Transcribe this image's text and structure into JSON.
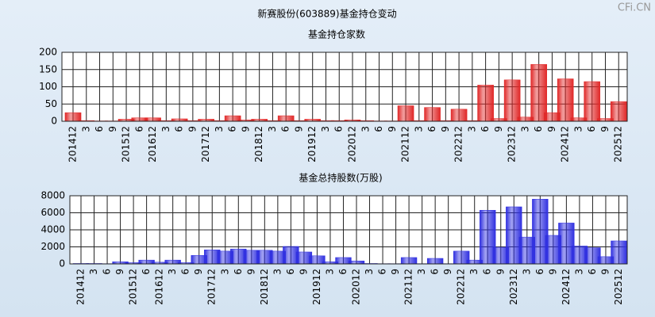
{
  "title": "新赛股份(603889)基金持仓变动",
  "watermark": "CFi.CN",
  "chart_data": [
    {
      "type": "bar",
      "title": "基金持仓家数",
      "categories": [
        "201412",
        "3",
        "6",
        "9",
        "201512",
        "6",
        "201612",
        "3",
        "6",
        "9",
        "201712",
        "3",
        "6",
        "9",
        "201812",
        "3",
        "6",
        "9",
        "201912",
        "3",
        "6",
        "202012",
        "3",
        "6",
        "9",
        "202112",
        "3",
        "6",
        "9",
        "202212",
        "3",
        "6",
        "9",
        "202312",
        "3",
        "6",
        "9",
        "202412",
        "3",
        "6",
        "9",
        "202512"
      ],
      "values": [
        25,
        2,
        1,
        1,
        6,
        10,
        10,
        2,
        7,
        2,
        6,
        2,
        16,
        4,
        6,
        2,
        16,
        2,
        6,
        2,
        2,
        4,
        2,
        1,
        1,
        45,
        2,
        40,
        2,
        35,
        2,
        105,
        8,
        120,
        12,
        165,
        25,
        123,
        10,
        115,
        8,
        57
      ],
      "color": "#e02828",
      "ylim": [
        0,
        200
      ],
      "yticks": [
        0,
        50,
        100,
        150,
        200
      ],
      "grid": true
    },
    {
      "type": "bar",
      "title": "基金总持股数(万股)",
      "categories": [
        "201412",
        "3",
        "6",
        "9",
        "201512",
        "6",
        "201612",
        "3",
        "6",
        "9",
        "201712",
        "3",
        "6",
        "9",
        "201812",
        "3",
        "6",
        "9",
        "201912",
        "3",
        "6",
        "202012",
        "3",
        "6",
        "9",
        "202112",
        "3",
        "6",
        "9",
        "202212",
        "3",
        "6",
        "9",
        "202312",
        "3",
        "6",
        "9",
        "202412",
        "3",
        "6",
        "9",
        "202512"
      ],
      "values": [
        50,
        50,
        30,
        250,
        150,
        450,
        200,
        450,
        150,
        1000,
        1650,
        1500,
        1750,
        1600,
        1600,
        1500,
        2050,
        1400,
        950,
        250,
        750,
        350,
        50,
        30,
        30,
        750,
        30,
        650,
        30,
        1500,
        450,
        6300,
        1950,
        6700,
        3150,
        7600,
        3350,
        4800,
        2100,
        1900,
        850,
        2700
      ],
      "color": "#3030e0",
      "ylim": [
        0,
        8000
      ],
      "yticks": [
        0,
        2000,
        4000,
        6000,
        8000
      ],
      "grid": true
    }
  ]
}
